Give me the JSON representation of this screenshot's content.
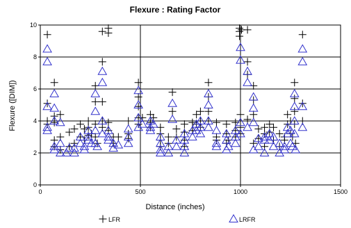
{
  "chart_data": {
    "type": "scatter",
    "title": "Flexure : Rating Factor",
    "xlabel": "Distance (inches)",
    "ylabel": "Flexure ([DIM])",
    "xlim": [
      0,
      1500
    ],
    "ylim": [
      0,
      10
    ],
    "x_ticks": [
      0,
      500,
      1000,
      1500
    ],
    "y_ticks": [
      0,
      2,
      4,
      6,
      8,
      10
    ],
    "grid": "major",
    "legend_position": "bottom",
    "colors": {
      "LFR": "#000000",
      "LRFR": "#3333cc"
    },
    "series": [
      {
        "name": "LFR",
        "marker": "plus",
        "points": [
          [
            35,
            9.4
          ],
          [
            35,
            5.1
          ],
          [
            35,
            4.0
          ],
          [
            35,
            3.8
          ],
          [
            70,
            6.4
          ],
          [
            70,
            4.3
          ],
          [
            70,
            3.9
          ],
          [
            70,
            2.8
          ],
          [
            70,
            2.4
          ],
          [
            100,
            4.4
          ],
          [
            100,
            3.0
          ],
          [
            100,
            2.2
          ],
          [
            145,
            3.3
          ],
          [
            145,
            2.4
          ],
          [
            170,
            3.5
          ],
          [
            170,
            2.6
          ],
          [
            200,
            3.8
          ],
          [
            200,
            3.0
          ],
          [
            220,
            3.5
          ],
          [
            220,
            2.8
          ],
          [
            240,
            4.0
          ],
          [
            240,
            3.6
          ],
          [
            240,
            3.1
          ],
          [
            255,
            3.2
          ],
          [
            275,
            6.2
          ],
          [
            275,
            5.2
          ],
          [
            275,
            3.8
          ],
          [
            275,
            3.0
          ],
          [
            285,
            2.6
          ],
          [
            310,
            9.6
          ],
          [
            310,
            7.7
          ],
          [
            310,
            5.2
          ],
          [
            310,
            4.0
          ],
          [
            310,
            3.6
          ],
          [
            340,
            9.8
          ],
          [
            340,
            9.5
          ],
          [
            340,
            3.9
          ],
          [
            340,
            3.4
          ],
          [
            365,
            3.0
          ],
          [
            365,
            2.6
          ],
          [
            390,
            3.0
          ],
          [
            440,
            4.0
          ],
          [
            440,
            3.2
          ],
          [
            440,
            2.9
          ],
          [
            490,
            6.4
          ],
          [
            490,
            5.5
          ],
          [
            490,
            4.9
          ],
          [
            490,
            4.2
          ],
          [
            490,
            3.8
          ],
          [
            510,
            4.2
          ],
          [
            550,
            4.4
          ],
          [
            550,
            3.9
          ],
          [
            550,
            3.6
          ],
          [
            565,
            4.2
          ],
          [
            600,
            3.6
          ],
          [
            600,
            3.2
          ],
          [
            600,
            2.8
          ],
          [
            600,
            2.4
          ],
          [
            640,
            3.0
          ],
          [
            640,
            2.6
          ],
          [
            660,
            5.8
          ],
          [
            660,
            4.6
          ],
          [
            680,
            3.5
          ],
          [
            680,
            3.0
          ],
          [
            720,
            3.8
          ],
          [
            720,
            3.3
          ],
          [
            720,
            2.8
          ],
          [
            720,
            2.4
          ],
          [
            760,
            3.9
          ],
          [
            760,
            3.4
          ],
          [
            780,
            4.4
          ],
          [
            780,
            3.8
          ],
          [
            800,
            4.6
          ],
          [
            800,
            4.0
          ],
          [
            800,
            3.6
          ],
          [
            840,
            6.4
          ],
          [
            840,
            5.5
          ],
          [
            840,
            4.6
          ],
          [
            840,
            4.0
          ],
          [
            880,
            3.9
          ],
          [
            880,
            3.0
          ],
          [
            880,
            2.8
          ],
          [
            930,
            3.8
          ],
          [
            930,
            3.2
          ],
          [
            930,
            2.6
          ],
          [
            940,
            2.8
          ],
          [
            975,
            3.9
          ],
          [
            975,
            3.4
          ],
          [
            975,
            3.0
          ],
          [
            995,
            9.6
          ],
          [
            995,
            9.3
          ],
          [
            995,
            9.8
          ],
          [
            1005,
            9.7
          ],
          [
            1000,
            4.4
          ],
          [
            1000,
            3.6
          ],
          [
            1000,
            3.2
          ],
          [
            1035,
            9.7
          ],
          [
            1035,
            7.7
          ],
          [
            1035,
            6.9
          ],
          [
            1035,
            4.1
          ],
          [
            1065,
            6.2
          ],
          [
            1065,
            5.3
          ],
          [
            1065,
            4.4
          ],
          [
            1065,
            2.6
          ],
          [
            1090,
            3.5
          ],
          [
            1090,
            2.9
          ],
          [
            1120,
            3.6
          ],
          [
            1120,
            3.2
          ],
          [
            1120,
            2.4
          ],
          [
            1145,
            3.8
          ],
          [
            1145,
            3.3
          ],
          [
            1165,
            3.6
          ],
          [
            1165,
            2.8
          ],
          [
            1195,
            3.2
          ],
          [
            1195,
            2.4
          ],
          [
            1220,
            3.0
          ],
          [
            1220,
            2.8
          ],
          [
            1235,
            4.4
          ],
          [
            1235,
            3.8
          ],
          [
            1250,
            4.0
          ],
          [
            1250,
            3.2
          ],
          [
            1260,
            3.0
          ],
          [
            1270,
            6.4
          ],
          [
            1270,
            5.4
          ],
          [
            1270,
            4.6
          ],
          [
            1270,
            3.8
          ],
          [
            1275,
            2.6
          ],
          [
            1310,
            9.4
          ],
          [
            1310,
            5.1
          ],
          [
            1310,
            4.0
          ]
        ]
      },
      {
        "name": "LRFR",
        "marker": "triangle",
        "points": [
          [
            35,
            8.5
          ],
          [
            35,
            7.7
          ],
          [
            35,
            4.9
          ],
          [
            35,
            3.6
          ],
          [
            35,
            3.4
          ],
          [
            70,
            5.7
          ],
          [
            70,
            4.8
          ],
          [
            70,
            4.0
          ],
          [
            70,
            2.4
          ],
          [
            70,
            2.2
          ],
          [
            100,
            3.9
          ],
          [
            100,
            2.6
          ],
          [
            100,
            2.0
          ],
          [
            130,
            2.0
          ],
          [
            145,
            2.3
          ],
          [
            170,
            2.3
          ],
          [
            170,
            2.0
          ],
          [
            200,
            3.0
          ],
          [
            200,
            2.6
          ],
          [
            220,
            2.4
          ],
          [
            220,
            2.2
          ],
          [
            240,
            3.4
          ],
          [
            240,
            3.0
          ],
          [
            240,
            2.8
          ],
          [
            255,
            2.6
          ],
          [
            275,
            5.7
          ],
          [
            275,
            4.6
          ],
          [
            275,
            3.4
          ],
          [
            275,
            2.6
          ],
          [
            285,
            2.4
          ],
          [
            310,
            7.1
          ],
          [
            310,
            6.4
          ],
          [
            310,
            4.0
          ],
          [
            310,
            3.2
          ],
          [
            340,
            3.4
          ],
          [
            340,
            3.0
          ],
          [
            340,
            2.8
          ],
          [
            365,
            2.6
          ],
          [
            365,
            2.3
          ],
          [
            390,
            2.5
          ],
          [
            440,
            3.5
          ],
          [
            440,
            3.0
          ],
          [
            440,
            2.6
          ],
          [
            490,
            5.9
          ],
          [
            490,
            5.0
          ],
          [
            490,
            4.2
          ],
          [
            490,
            3.6
          ],
          [
            510,
            3.8
          ],
          [
            550,
            4.0
          ],
          [
            550,
            3.6
          ],
          [
            550,
            3.4
          ],
          [
            565,
            3.8
          ],
          [
            600,
            3.0
          ],
          [
            600,
            2.6
          ],
          [
            600,
            2.2
          ],
          [
            600,
            2.0
          ],
          [
            640,
            2.4
          ],
          [
            640,
            2.0
          ],
          [
            660,
            5.1
          ],
          [
            660,
            4.1
          ],
          [
            680,
            2.8
          ],
          [
            680,
            2.4
          ],
          [
            720,
            3.2
          ],
          [
            720,
            2.8
          ],
          [
            720,
            2.4
          ],
          [
            720,
            2.0
          ],
          [
            760,
            3.4
          ],
          [
            760,
            3.0
          ],
          [
            780,
            3.8
          ],
          [
            780,
            3.4
          ],
          [
            800,
            4.0
          ],
          [
            800,
            3.6
          ],
          [
            800,
            3.2
          ],
          [
            840,
            5.7
          ],
          [
            840,
            5.0
          ],
          [
            840,
            4.0
          ],
          [
            840,
            3.6
          ],
          [
            880,
            3.4
          ],
          [
            880,
            2.6
          ],
          [
            880,
            2.4
          ],
          [
            930,
            3.2
          ],
          [
            930,
            2.8
          ],
          [
            930,
            2.2
          ],
          [
            940,
            2.4
          ],
          [
            975,
            3.4
          ],
          [
            975,
            3.0
          ],
          [
            975,
            2.6
          ],
          [
            1000,
            8.6
          ],
          [
            1000,
            7.8
          ],
          [
            1000,
            3.9
          ],
          [
            1000,
            3.2
          ],
          [
            1035,
            7.1
          ],
          [
            1035,
            6.4
          ],
          [
            1035,
            3.6
          ],
          [
            1065,
            5.5
          ],
          [
            1065,
            4.8
          ],
          [
            1065,
            3.9
          ],
          [
            1065,
            2.2
          ],
          [
            1090,
            2.9
          ],
          [
            1090,
            2.4
          ],
          [
            1120,
            3.0
          ],
          [
            1120,
            2.8
          ],
          [
            1120,
            2.0
          ],
          [
            1145,
            3.2
          ],
          [
            1145,
            2.8
          ],
          [
            1165,
            3.0
          ],
          [
            1165,
            2.4
          ],
          [
            1195,
            2.6
          ],
          [
            1195,
            2.0
          ],
          [
            1220,
            2.4
          ],
          [
            1220,
            2.2
          ],
          [
            1235,
            3.6
          ],
          [
            1235,
            3.2
          ],
          [
            1250,
            3.4
          ],
          [
            1250,
            2.6
          ],
          [
            1260,
            2.4
          ],
          [
            1270,
            5.7
          ],
          [
            1270,
            4.9
          ],
          [
            1270,
            4.0
          ],
          [
            1270,
            3.2
          ],
          [
            1275,
            2.2
          ],
          [
            1310,
            8.5
          ],
          [
            1310,
            7.7
          ],
          [
            1310,
            4.9
          ],
          [
            1310,
            3.6
          ]
        ]
      }
    ]
  }
}
